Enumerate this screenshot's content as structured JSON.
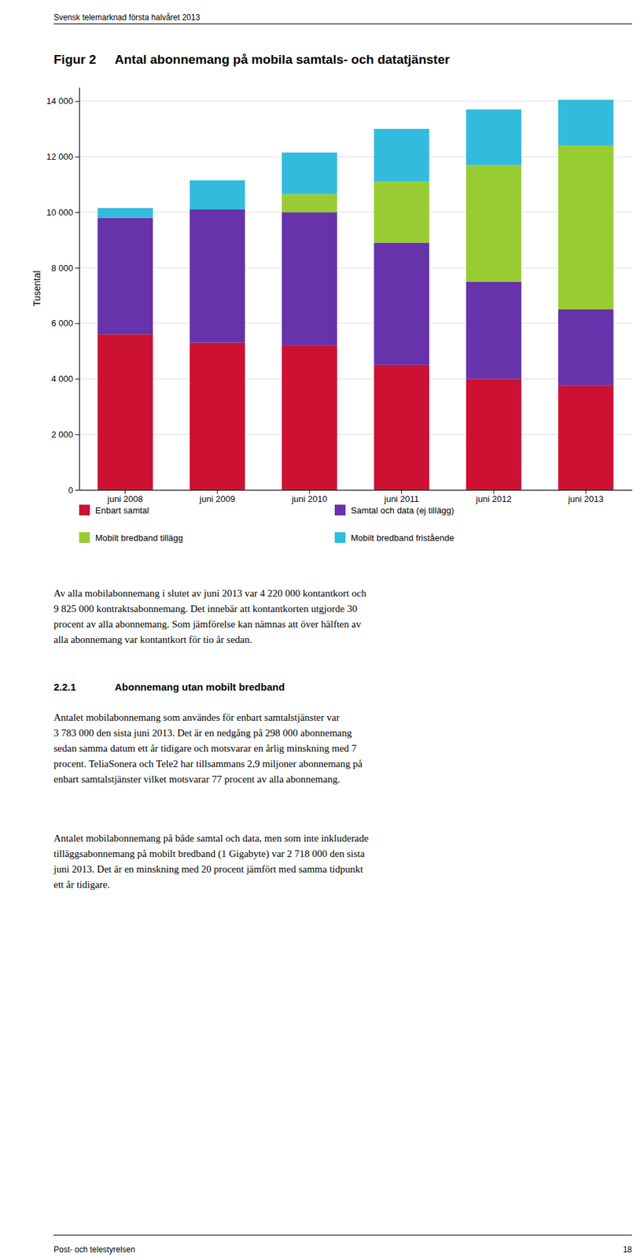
{
  "header": "Svensk telemarknad första halvåret 2013",
  "figure_label": "Figur 2",
  "body_text": "Av alla mobilabonnemang i slutet av juni 2013 var 4 220 000 kontantkort och\n9 825 000 kontraktsabonnemang. Det innebär att kontantkorten utgjorde 30\nprocent av alla abonnemang. Som jämförelse kan nämnas att över hälften av\nalla abonnemang var kontantkort för tio år sedan.",
  "section_number": "2.2.1",
  "section_title": "Abonnemang utan mobilt bredband",
  "body_text2": "Antalet mobilabonnemang som användes för enbart samtalstjänster var\n3 783 000 den sista juni 2013. Det är en nedgång på 298 000 abonnemang\nsedan samma datum ett år tidigare och motsvarar en årlig minskning med 7\nprocent.  TeliaSonera och Tele2 har tillsammans 2,9 miljoner abonnemang på\nenbart samtalstjänster vilket motsvarar 77 procent av alla abonnemang.",
  "body_text3": "Antalet mobilabonnemang på både samtal och data, men som inte inkluderade\ntilläggsabonnemang på mobilt bredband (1 Gigabyte) var 2 718 000 den sista\njuni 2013. Det är en minskning med 20 procent jämfört med samma tidpunkt\nett år tidigare.",
  "footer_left": "Post- och telestyrelsen",
  "footer_right": "18",
  "chart_data": {
    "type": "bar",
    "title": "Antal abonnemang på mobila samtals- och datatjänster",
    "ylabel": "Tusental",
    "categories": [
      "juni 2008",
      "juni 2009",
      "juni 2010",
      "juni 2011",
      "juni 2012",
      "juni 2013"
    ],
    "series": [
      {
        "name": "Enbart samtal",
        "color": "#CC1133",
        "values": [
          5600,
          5300,
          5200,
          4500,
          4000,
          3750
        ]
      },
      {
        "name": "Samtal och data (ej tillägg)",
        "color": "#6633AA",
        "values": [
          4200,
          4800,
          4800,
          4400,
          3500,
          2750
        ]
      },
      {
        "name": "Mobilt bredband tillägg",
        "color": "#99CC33",
        "values": [
          0,
          0,
          650,
          2200,
          4200,
          5900
        ]
      },
      {
        "name": "Mobilt bredband fristående",
        "color": "#33BBDD",
        "values": [
          350,
          1050,
          1500,
          1900,
          2000,
          1650
        ]
      }
    ],
    "stacked": true,
    "ylim": [
      0,
      14500
    ],
    "yticks": [
      0,
      {
        "value": 2000,
        "label": "2 000"
      },
      {
        "value": 4000,
        "label": "4 000"
      },
      {
        "value": 6000,
        "label": "6 000"
      },
      {
        "value": 8000,
        "label": "8 000"
      },
      {
        "value": 10000,
        "label": "10 000"
      },
      {
        "value": 12000,
        "label": "12 000"
      },
      {
        "value": 14000,
        "label": "14 000"
      }
    ],
    "grid": true,
    "legend": "bottom"
  }
}
